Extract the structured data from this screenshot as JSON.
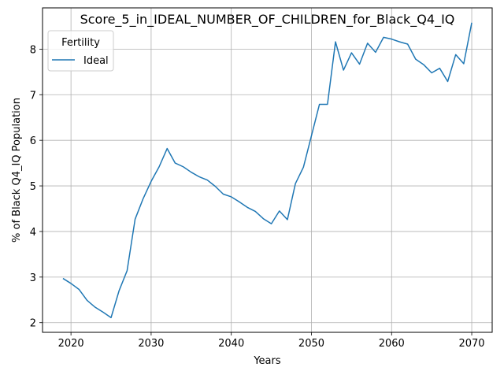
{
  "chart_data": {
    "type": "line",
    "title": "Score_5_in_IDEAL_NUMBER_OF_CHILDREN_for_Black_Q4_IQ",
    "xlabel": "Years",
    "ylabel": "% of Black Q4_IQ Population",
    "xlim": [
      2016.45,
      2072.55
    ],
    "ylim": [
      1.788,
      8.905
    ],
    "xticks": [
      2020,
      2030,
      2040,
      2050,
      2060,
      2070
    ],
    "yticks": [
      2,
      3,
      4,
      5,
      6,
      7,
      8
    ],
    "grid": true,
    "legend": {
      "title": "Fertility",
      "placement": "top-left"
    },
    "series": [
      {
        "name": "Ideal",
        "color": "#1f77b4",
        "x": [
          2019,
          2020,
          2021,
          2022,
          2023,
          2024,
          2025,
          2026,
          2027,
          2028,
          2029,
          2030,
          2031,
          2032,
          2033,
          2034,
          2035,
          2036,
          2037,
          2038,
          2039,
          2040,
          2041,
          2042,
          2043,
          2044,
          2045,
          2046,
          2047,
          2048,
          2049,
          2050,
          2051,
          2052,
          2053,
          2054,
          2055,
          2056,
          2057,
          2058,
          2059,
          2060,
          2061,
          2062,
          2063,
          2064,
          2065,
          2066,
          2067,
          2068,
          2069,
          2070
        ],
        "y": [
          2.97,
          2.86,
          2.73,
          2.49,
          2.34,
          2.23,
          2.11,
          2.7,
          3.14,
          4.27,
          4.72,
          5.1,
          5.42,
          5.82,
          5.5,
          5.42,
          5.3,
          5.2,
          5.13,
          4.99,
          4.82,
          4.76,
          4.65,
          4.53,
          4.44,
          4.28,
          4.17,
          4.45,
          4.26,
          5.05,
          5.41,
          6.1,
          6.79,
          6.79,
          8.16,
          7.54,
          7.92,
          7.67,
          8.13,
          7.93,
          8.26,
          8.22,
          8.16,
          8.11,
          7.78,
          7.66,
          7.48,
          7.58,
          7.29,
          7.88,
          7.68,
          8.58
        ]
      }
    ]
  }
}
